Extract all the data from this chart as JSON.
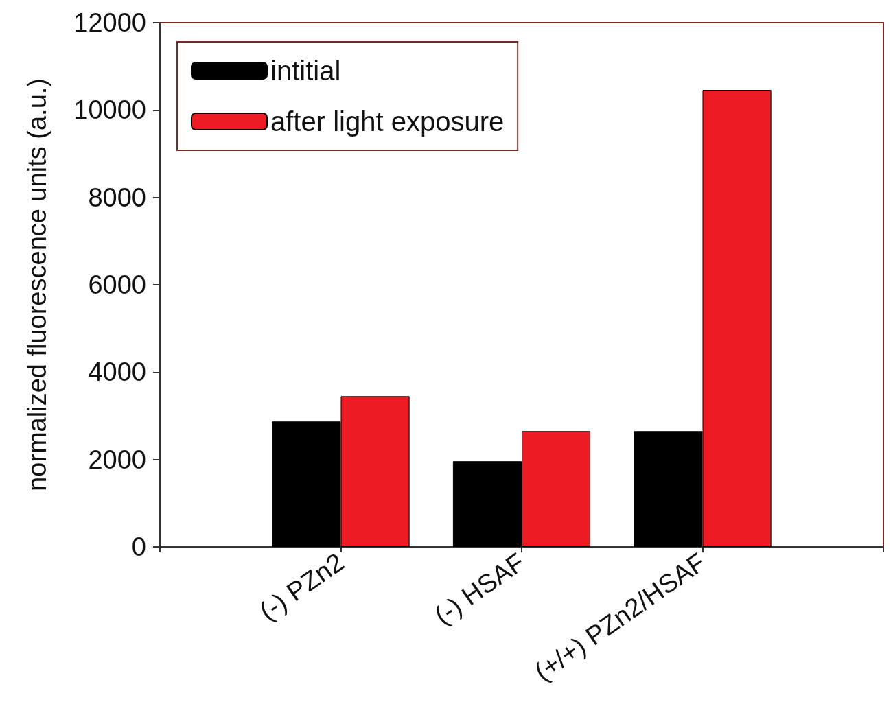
{
  "chart_data": {
    "type": "bar",
    "ylabel": "normalized fluorescence units (a.u.)",
    "categories": [
      null,
      "(-) PZn2",
      "(-) HSAF",
      "(+/+) PZn2/HSAF",
      null
    ],
    "series": [
      {
        "name": "intitial",
        "color": "#000000",
        "values": [
          null,
          2870,
          1960,
          2650,
          null
        ]
      },
      {
        "name": "after light exposure",
        "color": "#ed1c24",
        "values": [
          null,
          3450,
          2650,
          10460,
          null
        ]
      }
    ],
    "ylim": [
      0,
      12000
    ],
    "yticks": [
      0,
      2000,
      4000,
      6000,
      8000,
      10000,
      12000
    ],
    "grid": false,
    "legend": "top left"
  }
}
